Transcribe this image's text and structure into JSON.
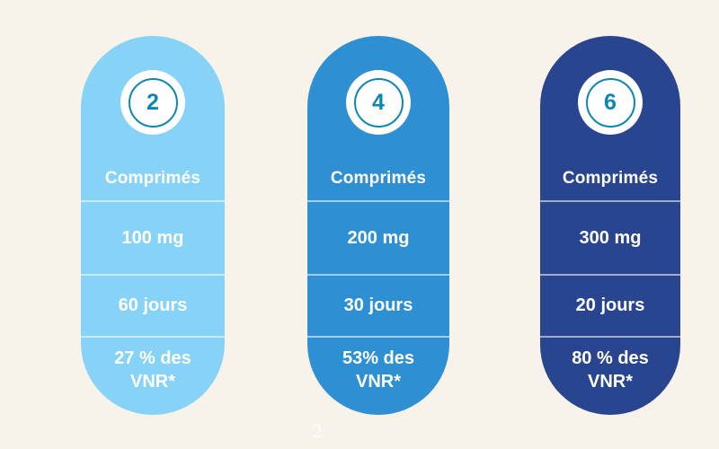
{
  "page": {
    "background_color": "#F7F2EA",
    "text_color": "#FFFFFF",
    "accent_teal": "#0E86B2",
    "watermark_page_number": "2"
  },
  "cards": [
    {
      "number": "2",
      "label": "Comprimés",
      "dose": "100 mg",
      "duration": "60 jours",
      "vnr_line1": "27 % des",
      "vnr_line2": "VNR*",
      "color": "#87D2F7"
    },
    {
      "number": "4",
      "label": "Comprimés",
      "dose": "200 mg",
      "duration": "30 jours",
      "vnr_line1": "53% des",
      "vnr_line2": "VNR*",
      "color": "#2E90D2"
    },
    {
      "number": "6",
      "label": "Comprimés",
      "dose": "300 mg",
      "duration": "20 jours",
      "vnr_line1": "80 % des",
      "vnr_line2": "VNR*",
      "color": "#2A458F"
    }
  ]
}
